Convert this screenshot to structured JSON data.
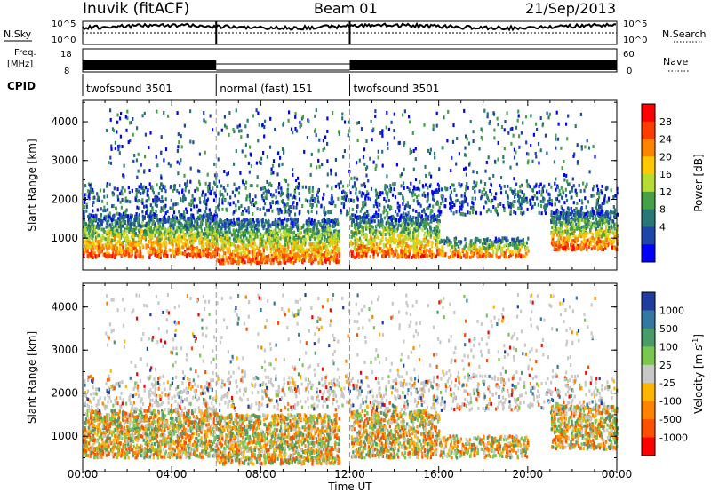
{
  "header": {
    "station": "Inuvik (fitACF)",
    "beam": "Beam 01",
    "date": "21/Sep/2013"
  },
  "left_labels": {
    "nsky": "N.Sky",
    "freq_line1": "Freq.",
    "freq_line2": "[MHz]",
    "cpid": "CPID"
  },
  "right_labels": {
    "nsearch": "N.Search",
    "nave": "Nave"
  },
  "noise_axis": {
    "left_ticks": [
      "10^5",
      "10^0"
    ],
    "right_ticks": [
      "10^5",
      "10^0"
    ]
  },
  "freq_axis": {
    "left_ticks": [
      "18",
      "8"
    ],
    "right_ticks": [
      "60",
      "0"
    ]
  },
  "cpid_segments": [
    {
      "label": "twofsound 3501",
      "start_hour": 0,
      "end_hour": 6
    },
    {
      "label": "normal (fast) 151",
      "start_hour": 6,
      "end_hour": 12
    },
    {
      "label": "twofsound 3501",
      "start_hour": 12,
      "end_hour": 24
    }
  ],
  "chart_data": [
    {
      "type": "heatmap",
      "panel": "power",
      "xlabel": "Time UT",
      "ylabel": "Slant Range [km]",
      "xlim": [
        0,
        24
      ],
      "ylim": [
        180,
        4550
      ],
      "x_ticks": [
        "00:00",
        "04:00",
        "08:00",
        "12:00",
        "16:00",
        "20:00",
        "00:00"
      ],
      "y_ticks": [
        "1000",
        "2000",
        "3000",
        "4000"
      ],
      "colorbar": {
        "label": "Power [dB]",
        "ticks": [
          "28",
          "24",
          "20",
          "16",
          "12",
          "8",
          "4"
        ],
        "colors": [
          "#ff0000",
          "#ff3c00",
          "#ff8200",
          "#ffc800",
          "#b4dc32",
          "#46a046",
          "#287878",
          "#1e46aa",
          "#0000ff"
        ]
      }
    },
    {
      "type": "heatmap",
      "panel": "velocity",
      "xlabel": "Time UT",
      "ylabel": "Slant Range [km]",
      "xlim": [
        0,
        24
      ],
      "ylim": [
        180,
        4550
      ],
      "x_ticks": [
        "00:00",
        "04:00",
        "08:00",
        "12:00",
        "16:00",
        "20:00",
        "00:00"
      ],
      "y_ticks": [
        "1000",
        "2000",
        "3000",
        "4000"
      ],
      "colorbar": {
        "label": "Velocity [m s",
        "label_sup": "-1",
        "label_end": "]",
        "ticks": [
          "1000",
          "500",
          "100",
          "25",
          "-25",
          "-100",
          "-500",
          "-1000"
        ],
        "colors": [
          "#1e3ca0",
          "#3278a0",
          "#4b9b69",
          "#78c850",
          "#c8c8c8",
          "#ffb400",
          "#ff8200",
          "#ff5000",
          "#ff0000"
        ]
      }
    }
  ]
}
